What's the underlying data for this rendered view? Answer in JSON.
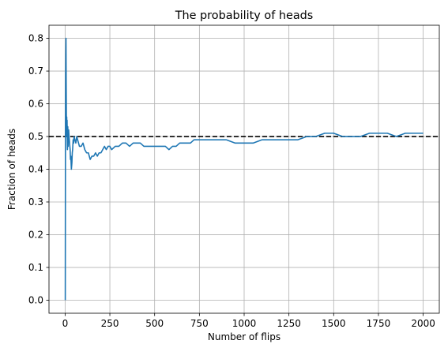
{
  "chart_data": {
    "type": "line",
    "title": "The probability of heads",
    "xlabel": "Number of flips",
    "ylabel": "Fraction of heads",
    "xlim": [
      -90,
      2090
    ],
    "ylim": [
      -0.04,
      0.84
    ],
    "xticks": [
      0,
      250,
      500,
      750,
      1000,
      1250,
      1500,
      1750,
      2000
    ],
    "yticks": [
      0.0,
      0.1,
      0.2,
      0.3,
      0.4,
      0.5,
      0.6,
      0.7,
      0.8
    ],
    "xtick_labels": [
      "0",
      "250",
      "500",
      "750",
      "1000",
      "1250",
      "1500",
      "1750",
      "2000"
    ],
    "ytick_labels": [
      "0.0",
      "0.1",
      "0.2",
      "0.3",
      "0.4",
      "0.5",
      "0.6",
      "0.7",
      "0.8"
    ],
    "grid": true,
    "reference_line": {
      "y": 0.5,
      "style": "dashed",
      "color": "#000000"
    },
    "series": [
      {
        "color": "#1f77b4",
        "x": [
          1,
          2,
          3,
          4,
          5,
          6,
          7,
          8,
          9,
          10,
          11,
          12,
          13,
          14,
          15,
          16,
          17,
          18,
          20,
          22,
          25,
          28,
          30,
          32,
          35,
          38,
          40,
          42,
          45,
          48,
          50,
          55,
          60,
          65,
          70,
          80,
          90,
          100,
          110,
          120,
          130,
          140,
          150,
          160,
          170,
          180,
          190,
          200,
          210,
          220,
          230,
          240,
          250,
          260,
          280,
          300,
          320,
          340,
          360,
          380,
          400,
          420,
          440,
          460,
          480,
          500,
          520,
          540,
          560,
          580,
          600,
          620,
          640,
          660,
          680,
          700,
          720,
          740,
          760,
          780,
          800,
          850,
          900,
          950,
          1000,
          1050,
          1100,
          1150,
          1200,
          1250,
          1300,
          1350,
          1400,
          1450,
          1500,
          1550,
          1600,
          1650,
          1700,
          1750,
          1800,
          1850,
          1900,
          1950,
          2000
        ],
        "y": [
          0.0,
          0.5,
          0.67,
          0.75,
          0.8,
          0.67,
          0.57,
          0.5,
          0.56,
          0.5,
          0.55,
          0.5,
          0.46,
          0.5,
          0.53,
          0.5,
          0.47,
          0.5,
          0.52,
          0.5,
          0.48,
          0.46,
          0.43,
          0.44,
          0.4,
          0.42,
          0.45,
          0.46,
          0.49,
          0.48,
          0.5,
          0.49,
          0.48,
          0.5,
          0.49,
          0.47,
          0.47,
          0.48,
          0.46,
          0.45,
          0.45,
          0.43,
          0.44,
          0.44,
          0.45,
          0.44,
          0.45,
          0.45,
          0.46,
          0.47,
          0.46,
          0.47,
          0.47,
          0.46,
          0.47,
          0.47,
          0.48,
          0.48,
          0.47,
          0.48,
          0.48,
          0.48,
          0.47,
          0.47,
          0.47,
          0.47,
          0.47,
          0.47,
          0.47,
          0.46,
          0.47,
          0.47,
          0.48,
          0.48,
          0.48,
          0.48,
          0.49,
          0.49,
          0.49,
          0.49,
          0.49,
          0.49,
          0.49,
          0.48,
          0.48,
          0.48,
          0.49,
          0.49,
          0.49,
          0.49,
          0.49,
          0.5,
          0.5,
          0.51,
          0.51,
          0.5,
          0.5,
          0.5,
          0.51,
          0.51,
          0.51,
          0.5,
          0.51,
          0.51,
          0.51
        ]
      }
    ]
  }
}
